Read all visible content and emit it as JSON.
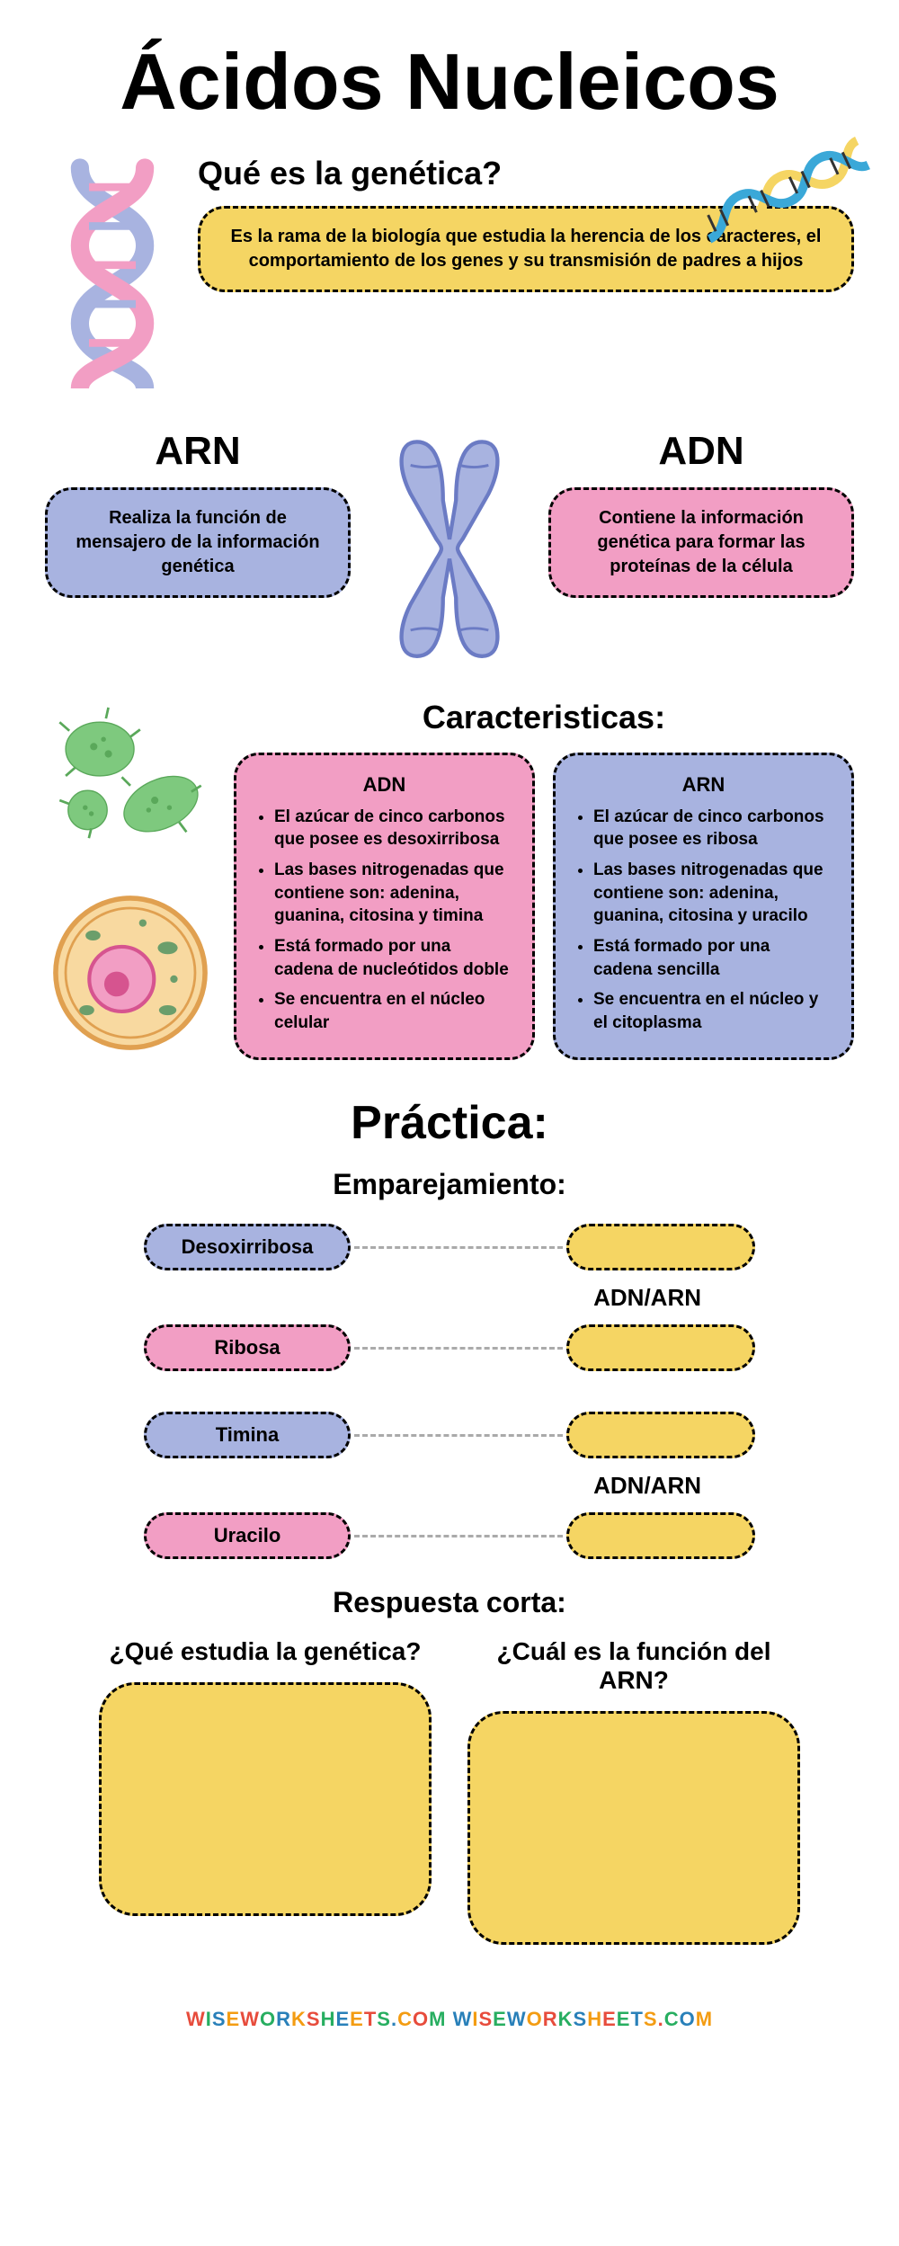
{
  "title": "Ácidos Nucleicos",
  "genetics": {
    "heading": "Qué es la genética?",
    "text": "Es la rama de la biología que estudia la herencia de los caracteres, el comportamiento de los genes y su transmisión de padres a hijos"
  },
  "arn": {
    "title": "ARN",
    "desc": "Realiza la función de mensajero de la información genética"
  },
  "adn": {
    "title": "ADN",
    "desc": "Contiene la información genética para formar las proteínas de la célula"
  },
  "characteristics": {
    "heading": "Caracteristicas:",
    "adn": {
      "title": "ADN",
      "items": [
        "El azúcar de cinco carbonos que posee es desoxirribosa",
        "Las bases nitrogenadas que contiene son: adenina, guanina, citosina y timina",
        "Está formado por una cadena de nucleótidos doble",
        "Se encuentra en el núcleo celular"
      ]
    },
    "arn": {
      "title": "ARN",
      "items": [
        "El azúcar de cinco carbonos que posee es ribosa",
        "Las bases nitrogenadas que contiene son: adenina, guanina, citosina y uracilo",
        "Está formado por una cadena sencilla",
        "Se encuentra en el núcleo y el citoplasma"
      ]
    }
  },
  "practice": {
    "heading": "Práctica:",
    "matching": {
      "heading": "Emparejamiento:",
      "label": "ADN/ARN",
      "pairs": [
        {
          "left": "Desoxirribosa",
          "color": "blue"
        },
        {
          "left": "Ribosa",
          "color": "pink"
        },
        {
          "left": "Timina",
          "color": "blue"
        },
        {
          "left": "Uracilo",
          "color": "pink"
        }
      ]
    },
    "short": {
      "heading": "Respuesta corta:",
      "q1": "¿Qué estudia la genética?",
      "q2": "¿Cuál es la función del ARN?"
    }
  },
  "watermark": "WISEWORKSHEETS.COM  WISEWORKSHEETS.COM",
  "colors": {
    "yellow": "#f5d563",
    "pink": "#f29ec4",
    "blue": "#a8b3e0",
    "dash": "#000000"
  },
  "icons": {
    "dna_helix_pink_blue": "dna-helix",
    "dna_helix_diagonal": "dna-helix-colored",
    "chromosome": "chromosome",
    "bacteria": "bacteria",
    "cell": "cell"
  }
}
